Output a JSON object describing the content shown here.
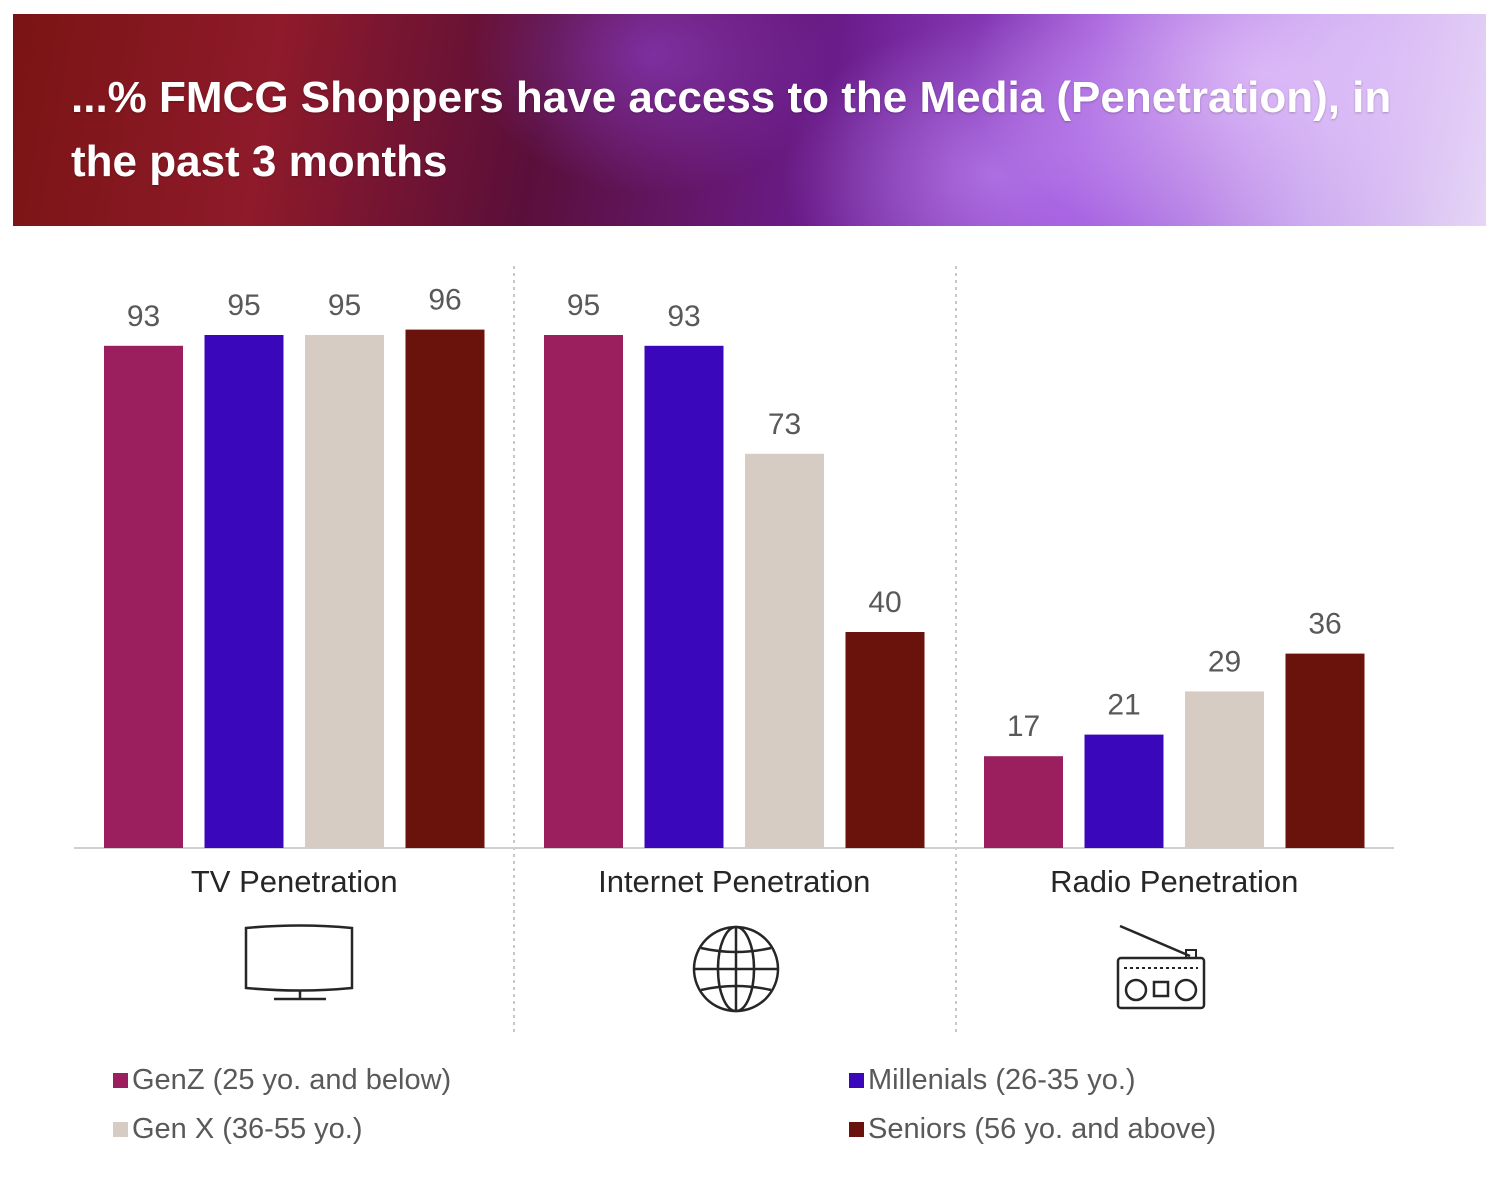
{
  "header": {
    "title": "...% FMCG Shoppers have access to the Media (Penetration), in the past 3 months"
  },
  "icons": [
    "tv-icon",
    "globe-icon",
    "radio-icon"
  ],
  "chart_data": {
    "type": "bar",
    "categories": [
      "TV Penetration",
      "Internet Penetration",
      "Radio Penetration"
    ],
    "series": [
      {
        "name": "GenZ (25 yo. and below)",
        "color": "#9b1f5e",
        "values": [
          93,
          95,
          17
        ]
      },
      {
        "name": "Millenials (26-35 yo.)",
        "color": "#3a07bb",
        "values": [
          95,
          93,
          21
        ]
      },
      {
        "name": "Gen X (36-55 yo.)",
        "color": "#d7ccc4",
        "values": [
          95,
          73,
          29
        ]
      },
      {
        "name": "Seniors (56 yo. and above)",
        "color": "#6a130d",
        "values": [
          96,
          40,
          36
        ]
      }
    ],
    "title": "...% FMCG Shoppers have access to the Media (Penetration), in the past 3 months",
    "xlabel": "",
    "ylabel": "",
    "ylim": [
      0,
      100
    ],
    "grid": false,
    "legend": "bottom",
    "data_labels": true
  }
}
